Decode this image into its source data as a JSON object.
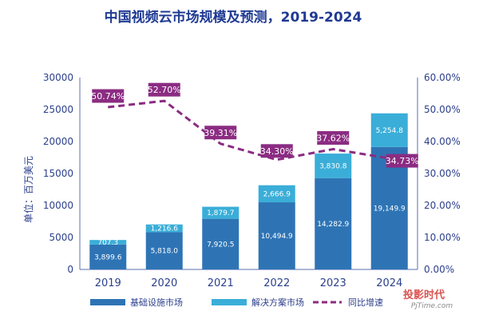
{
  "chart_data": {
    "type": "bar",
    "title": "中国视频云市场规模及预测，2019-2024",
    "ylabel": "单位：百万美元",
    "ylim": [
      0,
      30000
    ],
    "y_ticks": [
      "30000",
      "25000",
      "20000",
      "15000",
      "10000",
      "5000",
      "0"
    ],
    "y2lim": [
      0,
      60
    ],
    "y2_ticks": [
      "60.00%",
      "50.00%",
      "40.00%",
      "30.00%",
      "20.00%",
      "10.00%",
      "0.00%"
    ],
    "categories": [
      "2019",
      "2020",
      "2021",
      "2022",
      "2023",
      "2024"
    ],
    "series": [
      {
        "name": "基础设施市场",
        "color": "#2e74b5",
        "values": [
          3899.6,
          5818.0,
          7920.5,
          10494.9,
          14282.9,
          19149.9
        ],
        "labels": [
          "3,899.6",
          "5,818.0",
          "7,920.5",
          "10,494.9",
          "14,282.9",
          "19,149.9"
        ]
      },
      {
        "name": "解决方案市场",
        "color": "#3aaed8",
        "values": [
          707.3,
          1216.6,
          1879.7,
          2666.9,
          3830.8,
          5254.8
        ],
        "labels": [
          "707.3",
          "1,216.6",
          "1,879.7",
          "2,666.9",
          "3,830.8",
          "5,254.8"
        ]
      }
    ],
    "line": {
      "name": "同比增速",
      "color": "#8b2c82",
      "axis": "right",
      "values": [
        50.74,
        52.7,
        39.31,
        34.3,
        37.62,
        34.73
      ],
      "labels": [
        "50.74%",
        "52.70%",
        "39.31%",
        "34.30%",
        "37.62%",
        "34.73%"
      ]
    },
    "legend_position": "bottom"
  },
  "watermark": {
    "name": "投影时代",
    "site": "PjTime.com"
  }
}
